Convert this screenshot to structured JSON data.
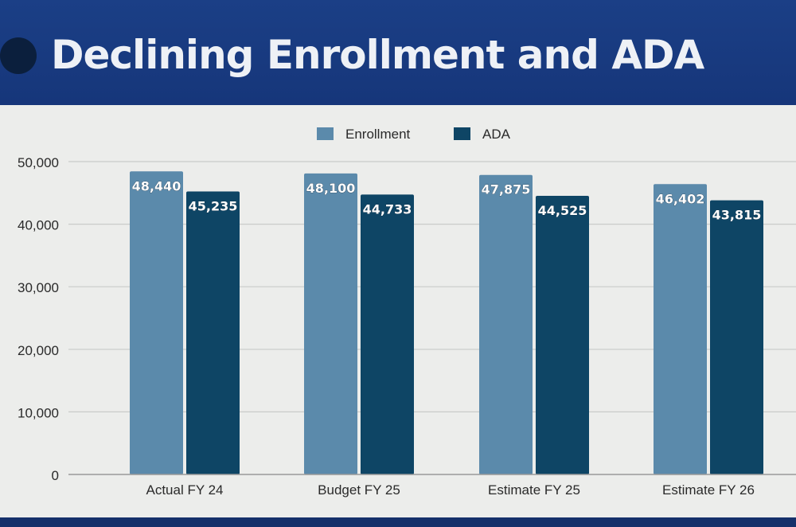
{
  "slide": {
    "title": "Declining Enrollment and ADA"
  },
  "colors": {
    "enrollment": "#5b8aab",
    "ada": "#0e4565",
    "grid": "#c9cbc9",
    "axis": "#9a9a9a"
  },
  "chart_data": {
    "type": "bar",
    "title": "",
    "xlabel": "",
    "ylabel": "",
    "categories": [
      "Actual FY 24",
      "Budget FY 25",
      "Estimate FY 25",
      "Estimate FY 26"
    ],
    "series": [
      {
        "name": "Enrollment",
        "values": [
          48440,
          48100,
          47875,
          46402
        ],
        "labels": [
          "48,440",
          "48,100",
          "47,875",
          "46,402"
        ]
      },
      {
        "name": "ADA",
        "values": [
          45235,
          44733,
          44525,
          43815
        ],
        "labels": [
          "45,235",
          "44,733",
          "44,525",
          "43,815"
        ]
      }
    ],
    "ylim": [
      0,
      50000
    ],
    "yticks": [
      0,
      10000,
      20000,
      30000,
      40000,
      50000
    ],
    "ytick_labels": [
      "0",
      "10,000",
      "20,000",
      "30,000",
      "40,000",
      "50,000"
    ],
    "grid": true,
    "legend": "top-center"
  }
}
